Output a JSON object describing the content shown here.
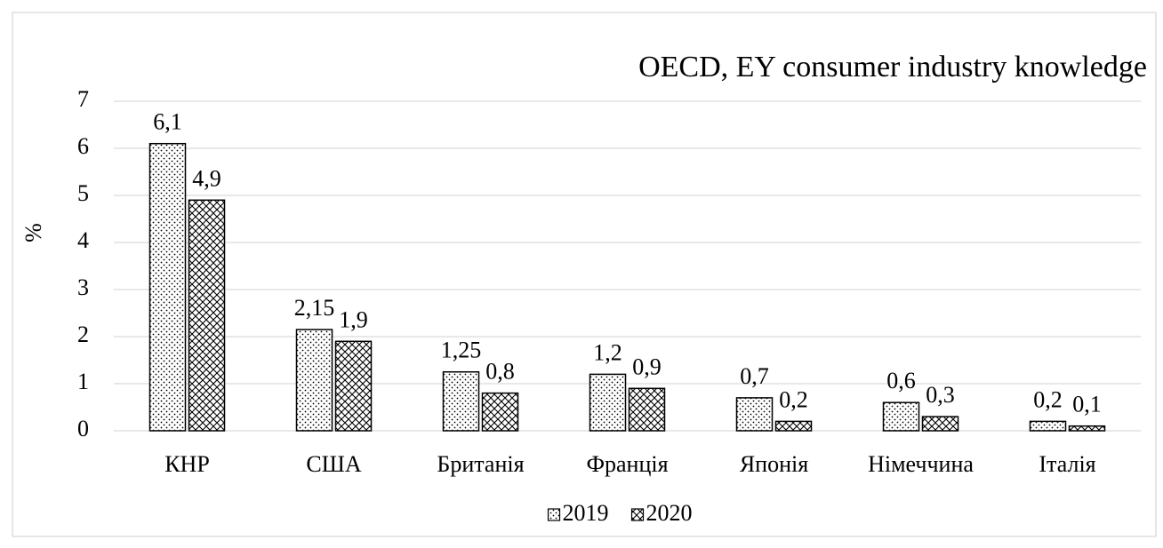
{
  "chart_data": {
    "type": "bar",
    "title": "OECD, EY consumer industry knowledge",
    "y_label": "%",
    "categories": [
      "КНР",
      "США",
      "Британія",
      "Франція",
      "Японія",
      "Німеччина",
      "Італія"
    ],
    "series": [
      {
        "name": "2019",
        "color": "#000000",
        "pattern": "dots",
        "values": [
          6.1,
          2.15,
          1.25,
          1.2,
          0.7,
          0.6,
          0.2
        ],
        "value_labels": [
          "6,1",
          "2,15",
          "1,25",
          "1,2",
          "0,7",
          "0,6",
          "0,2"
        ]
      },
      {
        "name": "2020",
        "color": "#000000",
        "pattern": "crosshatch",
        "values": [
          4.9,
          1.9,
          0.8,
          0.9,
          0.2,
          0.3,
          0.1
        ],
        "value_labels": [
          "4,9",
          "1,9",
          "0,8",
          "0,9",
          "0,2",
          "0,3",
          "0,1"
        ]
      }
    ],
    "ylim": [
      0,
      7
    ],
    "yticks": [
      0,
      1,
      2,
      3,
      4,
      5,
      6,
      7
    ],
    "grid": true,
    "legend": "bottom"
  }
}
